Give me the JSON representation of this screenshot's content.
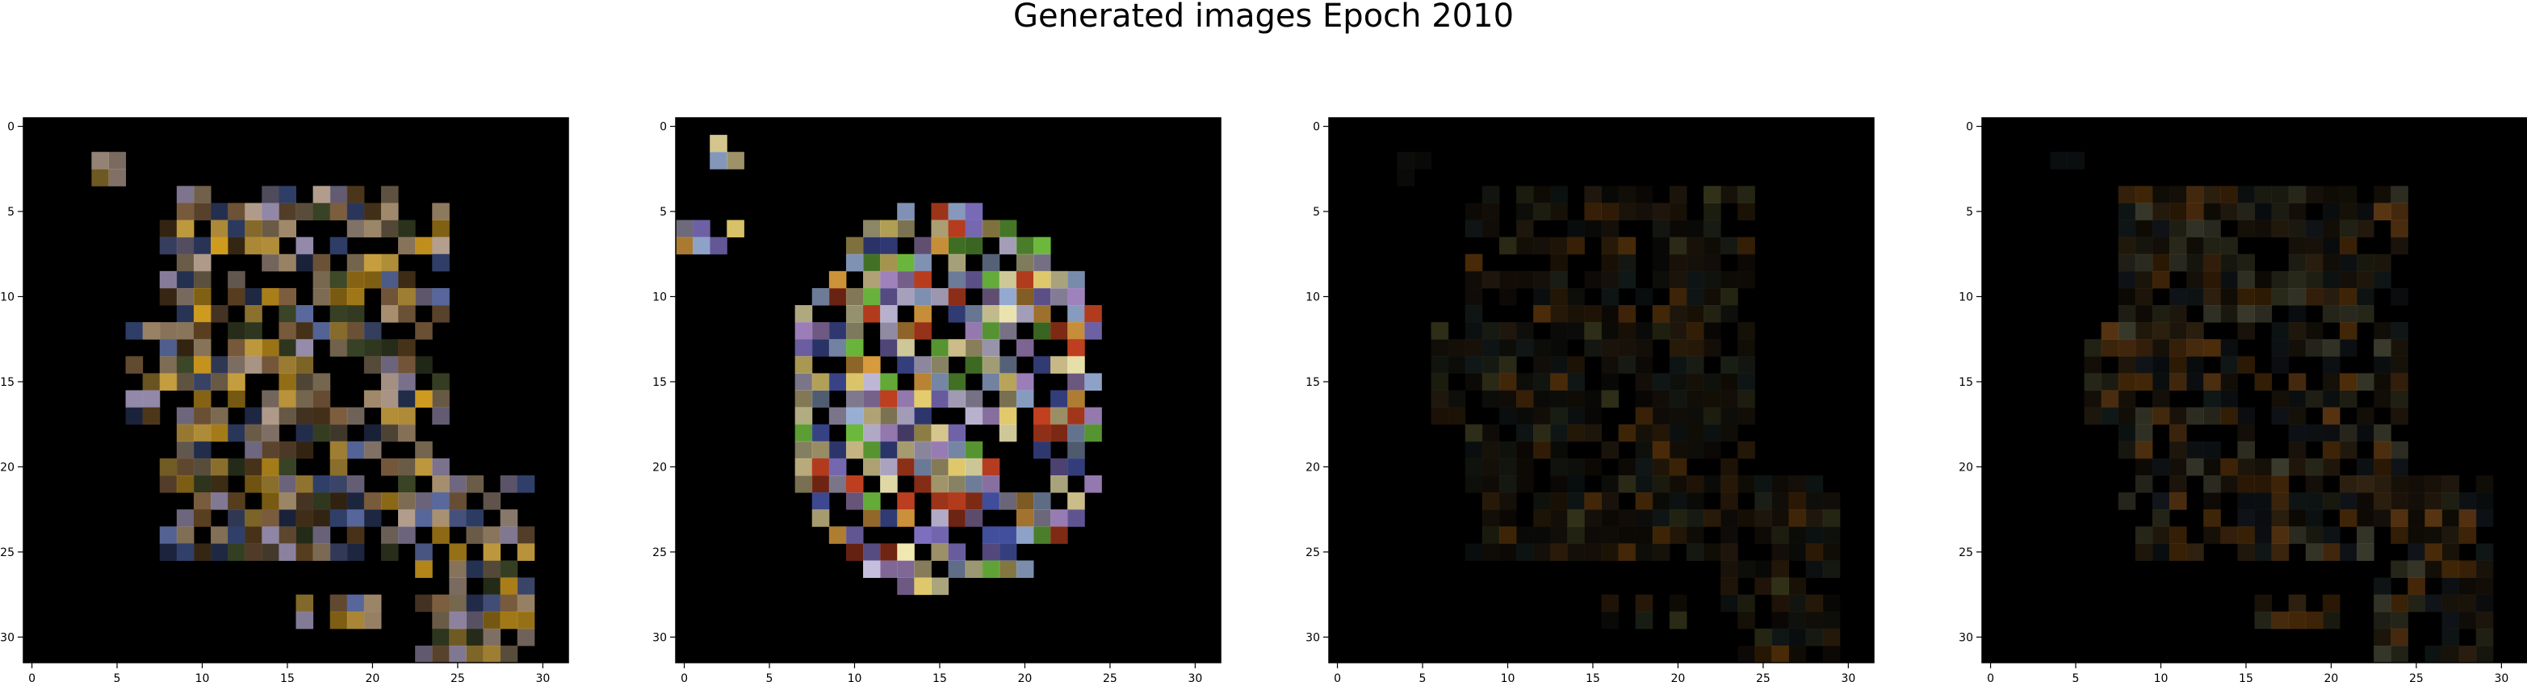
{
  "figure": {
    "title": "Generated images Epoch 2010"
  },
  "subplots": [
    {
      "name": "generated-image-1",
      "xticks": [
        "0",
        "5",
        "10",
        "15",
        "20",
        "25",
        "30"
      ],
      "yticks": [
        "0",
        "5",
        "10",
        "15",
        "20",
        "25",
        "30"
      ]
    },
    {
      "name": "generated-image-2",
      "xticks": [
        "0",
        "5",
        "10",
        "15",
        "20",
        "25",
        "30"
      ],
      "yticks": [
        "0",
        "5",
        "10",
        "15",
        "20",
        "25",
        "30"
      ]
    },
    {
      "name": "generated-image-3",
      "xticks": [
        "0",
        "5",
        "10",
        "15",
        "20",
        "25",
        "30"
      ],
      "yticks": [
        "0",
        "5",
        "10",
        "15",
        "20",
        "25",
        "30"
      ]
    },
    {
      "name": "generated-image-4",
      "xticks": [
        "0",
        "5",
        "10",
        "15",
        "20",
        "25",
        "30"
      ],
      "yticks": [
        "0",
        "5",
        "10",
        "15",
        "20",
        "25",
        "30"
      ]
    }
  ],
  "colors": {
    "background": "#000000",
    "blob_1": [
      "#7a6a52",
      "#9a8fb0",
      "#5a6aa0",
      "#c8a040",
      "#3f4a2a",
      "#a89070",
      "#5a4020",
      "#d6a020",
      "#30406a",
      "#806040",
      "#b6a090"
    ],
    "blob_2": [
      "#c8c0e0",
      "#e8d070",
      "#9ab0d8",
      "#b090d0",
      "#d8c890",
      "#5060c0",
      "#e0a040",
      "#70c040",
      "#c04020",
      "#f0e8b0",
      "#8070c0"
    ],
    "blob_3": [
      "#2a2010",
      "#3a2c18",
      "#1a1a14",
      "#4a3010",
      "#303828",
      "#201810",
      "#8a5010",
      "#5a5a30",
      "#1e2a2a"
    ],
    "blob_4": [
      "#3a2c18",
      "#2a2010",
      "#5a4020",
      "#8a5010",
      "#4a4a30",
      "#202830",
      "#a06020",
      "#6a6a50",
      "#1e2a2a"
    ]
  }
}
